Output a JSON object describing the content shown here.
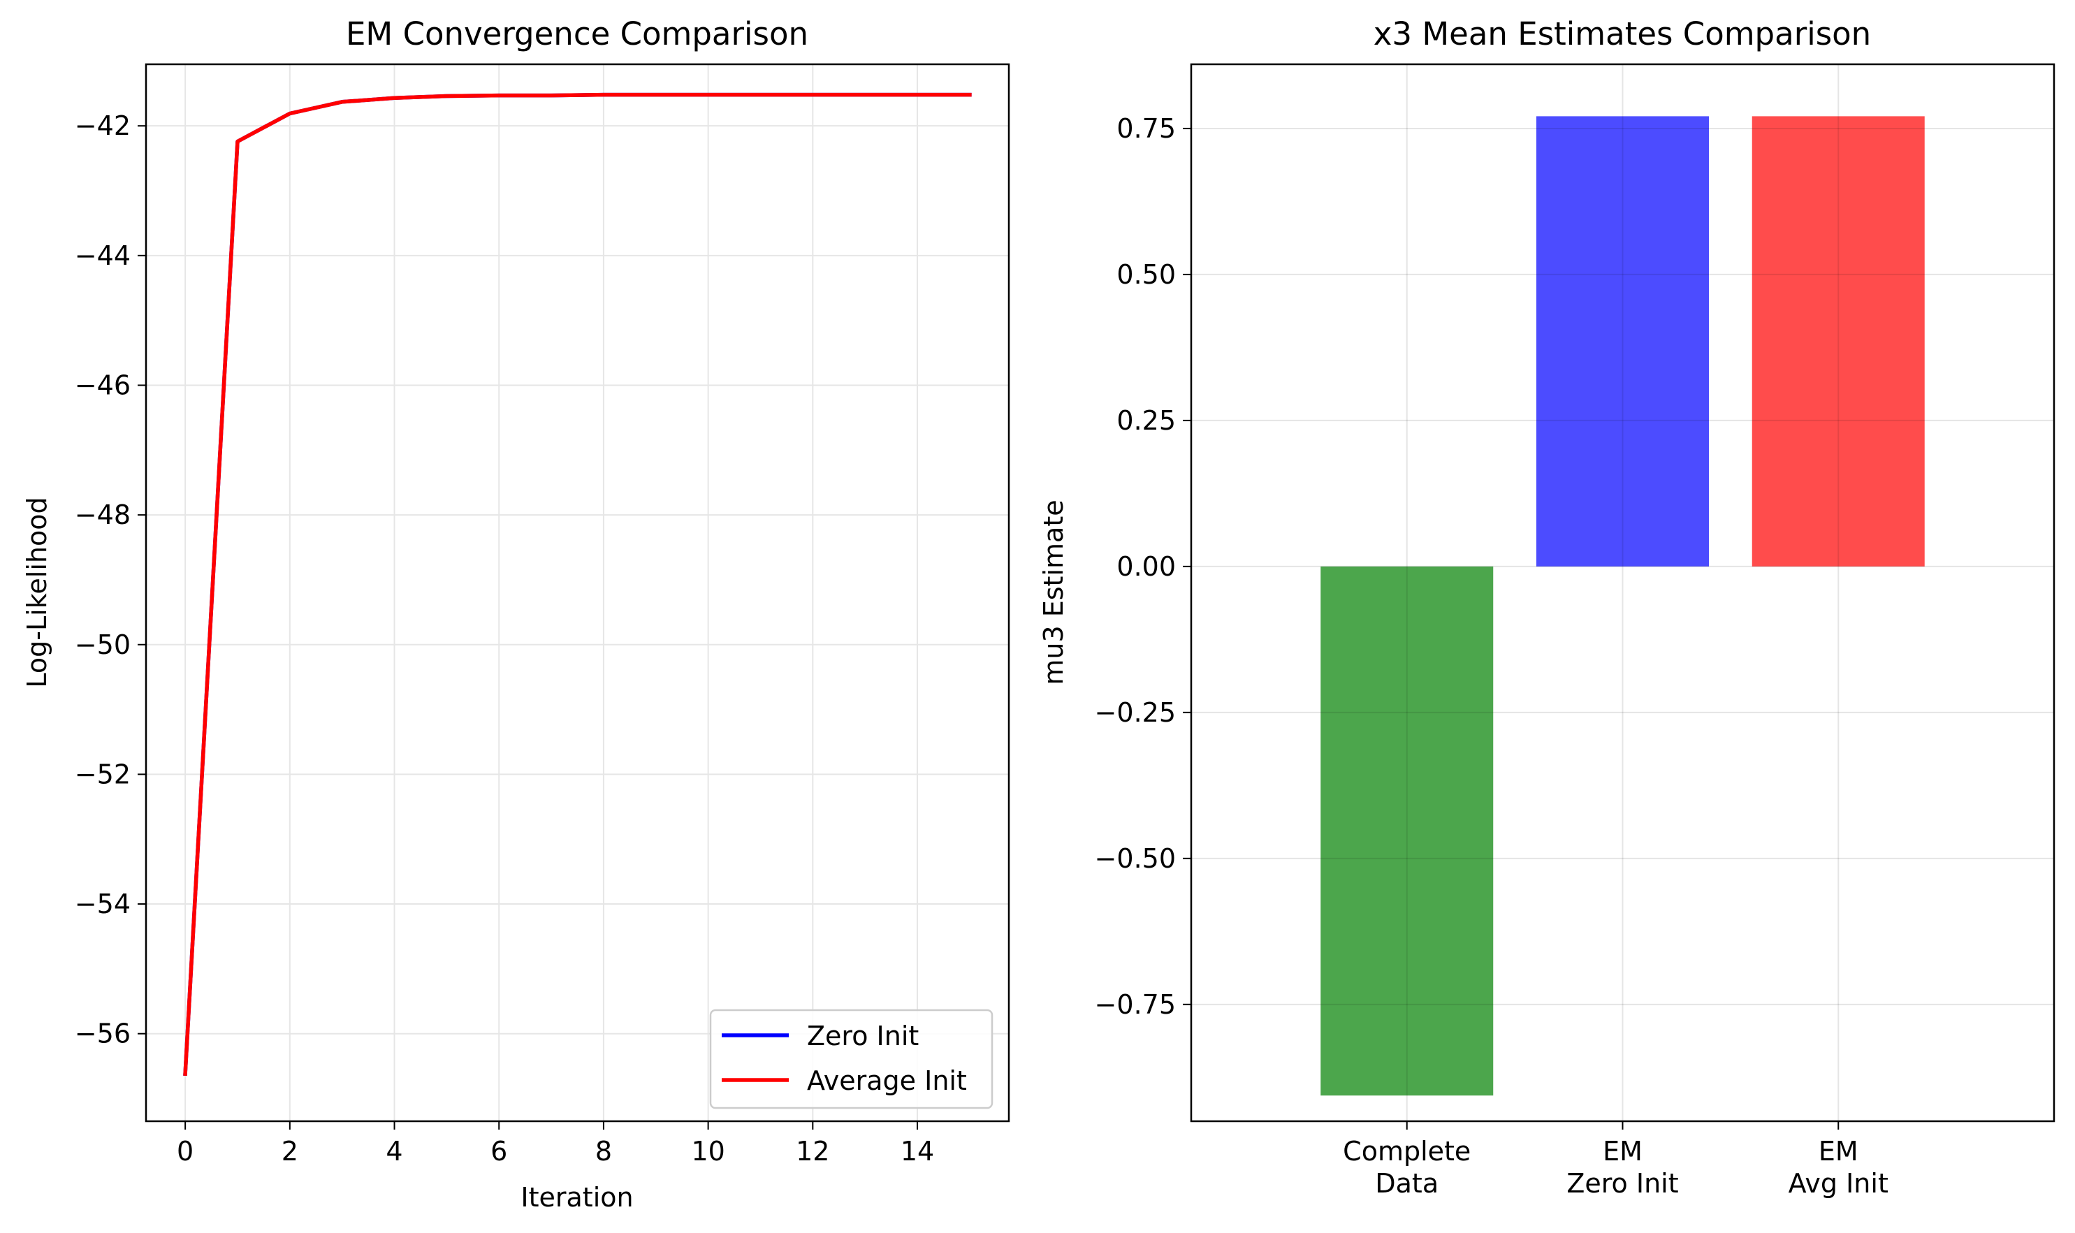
{
  "chart_data": [
    {
      "type": "line",
      "title": "EM Convergence Comparison",
      "xlabel": "Iteration",
      "ylabel": "Log-Likelihood",
      "xlim": [
        -0.75,
        15.75
      ],
      "ylim": [
        -57.35,
        -41.05
      ],
      "xticks": [
        0,
        2,
        4,
        6,
        8,
        10,
        12,
        14
      ],
      "yticks": [
        -56,
        -54,
        -52,
        -50,
        -48,
        -46,
        -44,
        -42
      ],
      "grid": true,
      "legend_position": "lower right",
      "x": [
        0,
        1,
        2,
        3,
        4,
        5,
        6,
        7,
        8,
        9,
        10,
        11,
        12,
        13,
        14,
        15
      ],
      "series": [
        {
          "name": "Zero Init",
          "color": "#0000ff",
          "values": [
            -56.62,
            -42.24,
            -41.81,
            -41.63,
            -41.57,
            -41.54,
            -41.53,
            -41.53,
            -41.52,
            -41.52,
            -41.52,
            -41.52,
            -41.52,
            -41.52,
            -41.52,
            -41.52
          ]
        },
        {
          "name": "Average Init",
          "color": "#ff0000",
          "values": [
            -56.62,
            -42.24,
            -41.81,
            -41.63,
            -41.57,
            -41.54,
            -41.53,
            -41.53,
            -41.52,
            -41.52,
            -41.52,
            -41.52,
            -41.52,
            -41.52,
            -41.52,
            -41.52
          ]
        }
      ]
    },
    {
      "type": "bar",
      "title": "x3 Mean Estimates Comparison",
      "xlabel": "",
      "ylabel": "mu3 Estimate",
      "ylim": [
        -0.95,
        0.86
      ],
      "yticks": [
        -0.75,
        -0.5,
        -0.25,
        0.0,
        0.25,
        0.5,
        0.75
      ],
      "ytick_labels": [
        "−0.75",
        "−0.50",
        "−0.25",
        "0.00",
        "0.25",
        "0.50",
        "0.75"
      ],
      "grid": true,
      "categories": [
        [
          "Complete",
          "Data"
        ],
        [
          "EM",
          "Zero Init"
        ],
        [
          "EM",
          "Avg Init"
        ]
      ],
      "values": [
        -0.906,
        0.771,
        0.771
      ],
      "colors": [
        "#4ca64c",
        "#4c4cff",
        "#ff4c4c"
      ]
    }
  ]
}
